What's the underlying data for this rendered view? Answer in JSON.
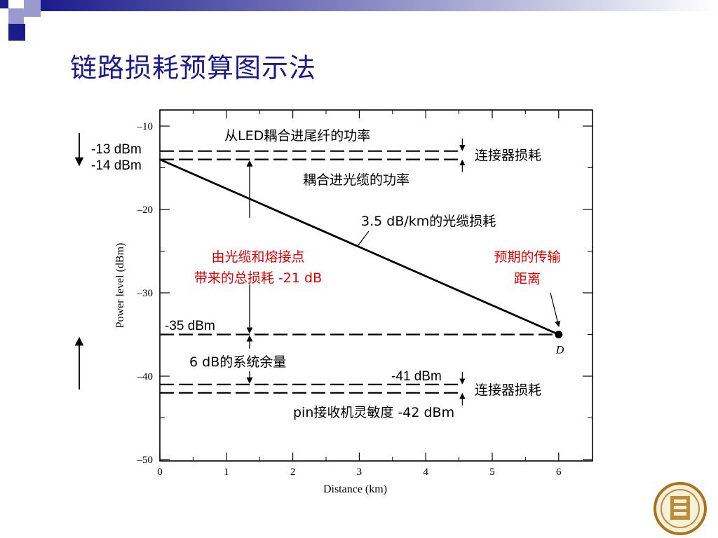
{
  "slide": {
    "title": "链路损耗预算图示法",
    "header_colors": [
      "#1b1b8c",
      "#ffffff",
      "#9a9ad0"
    ]
  },
  "chart_data": {
    "type": "line",
    "xlabel": "Distance (km)",
    "ylabel": "Power level (dBm)",
    "xlim": [
      0,
      6.4
    ],
    "ylim": [
      -50,
      -8
    ],
    "x_ticks": [
      "0",
      "1",
      "2",
      "3",
      "4",
      "5",
      "6"
    ],
    "y_ticks": [
      "–10",
      "–20",
      "–30",
      "–40",
      "–50"
    ],
    "grid": false,
    "series": [
      {
        "values": [
          {
            "x": 0,
            "y": -14
          },
          {
            "x": 6,
            "y": -35
          }
        ]
      }
    ],
    "point_label": {
      "x": 6,
      "y": -35,
      "text": "D"
    },
    "reference_lines": [
      {
        "y": -13,
        "x_from": 0,
        "x_to": 4.55
      },
      {
        "y": -14,
        "x_from": 0,
        "x_to": 4.55
      },
      {
        "y": -35,
        "x_from": 0,
        "x_to": 6
      },
      {
        "y": -41,
        "x_from": 0,
        "x_to": 4.55
      },
      {
        "y": -42,
        "x_from": 0,
        "x_to": 4.55
      }
    ],
    "annotations": {
      "led_power": "从LED耦合进尾纤的功率",
      "connector_loss_top": "连接器损耗",
      "cable_power": "耦合进光缆的功率",
      "cable_loss": "3.5 dB/km的光缆损耗",
      "total_loss_line1": "由光缆和熔接点",
      "total_loss_line2": "带来的总损耗 -21 dB",
      "expected_distance_line1": "预期的传输",
      "expected_distance_line2": "距离",
      "level_minus13": "-13 dBm",
      "level_minus14": "-14 dBm",
      "level_minus35": "-35 dBm",
      "system_margin": "6 dB的系统余量",
      "level_minus41": "-41 dBm",
      "connector_loss_bottom": "连接器损耗",
      "receiver_sensitivity": "pin接收机灵敏度 -42 dBm"
    },
    "colors": {
      "ink": "#000000",
      "highlight": "#e00000"
    }
  }
}
